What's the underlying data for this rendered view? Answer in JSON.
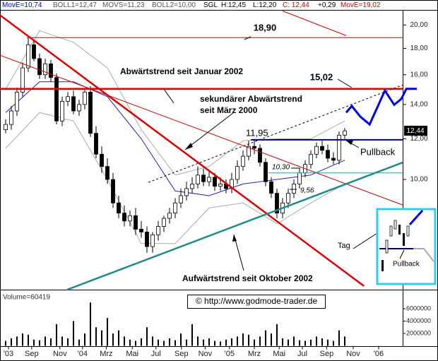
{
  "chart_data": {
    "type": "candlestick",
    "log_scale": true,
    "legend": [
      {
        "text": "MovE=10,74",
        "color": "#0000cc"
      },
      {
        "text": "BOLL1=12,47",
        "color": "#555555"
      },
      {
        "text": "MOVS=11,23",
        "color": "#555555"
      },
      {
        "text": "BOLL2=10,00",
        "color": "#555555"
      },
      {
        "text": "SGL",
        "color": "#000000"
      },
      {
        "text": "H:12,45",
        "color": "#000000"
      },
      {
        "text": "L:12,20",
        "color": "#000000"
      },
      {
        "text": "C: 12,44",
        "color": "#cc0000"
      },
      {
        "text": "+0,29",
        "color": "#000000"
      },
      {
        "text": "MovE=19,02",
        "color": "#cc0000"
      }
    ],
    "annotations": [
      "18,90",
      "Abwärtstrend seit Januar 2002",
      "15,02",
      "sekundärer Abwärtstrend",
      "seit März 2000",
      "11,95",
      "10,30",
      "9,56",
      "Pullback",
      "Tag",
      "Aufwärtstrend seit Oktober 2002",
      "Pullback",
      "© http://www.godmode-trader.de",
      "Volume=60419",
      "12,44"
    ],
    "x": [
      0,
      1,
      2,
      3,
      4,
      5,
      6,
      7,
      8,
      9,
      10,
      11,
      12,
      13,
      14,
      15,
      16,
      17,
      18,
      19,
      20,
      21,
      22,
      23,
      24,
      25,
      26,
      27,
      28,
      29,
      30,
      31,
      32,
      33,
      34,
      35,
      36,
      37,
      38,
      39,
      40,
      41,
      42,
      43,
      44,
      45,
      46,
      47,
      48,
      49,
      50,
      51,
      52,
      53,
      54,
      55,
      56,
      57,
      58,
      59,
      60
    ],
    "open": [
      12.5,
      12.8,
      13.6,
      14.8,
      16.5,
      18.3,
      17.2,
      16.0,
      16.8,
      15.8,
      13.0,
      14.2,
      14.5,
      13.6,
      14.0,
      14.8,
      12.3,
      11.2,
      10.6,
      10.0,
      9.0,
      8.6,
      8.3,
      8.5,
      8.0,
      7.9,
      7.4,
      7.8,
      8.1,
      8.4,
      8.6,
      9.0,
      9.3,
      9.6,
      9.8,
      10.2,
      9.9,
      10.1,
      9.7,
      9.8,
      9.6,
      10.0,
      10.6,
      11.1,
      11.6,
      11.5,
      10.8,
      9.9,
      9.4,
      8.6,
      9.0,
      9.4,
      9.8,
      10.3,
      10.7,
      11.2,
      11.6,
      11.4,
      11.0,
      10.9,
      12.2
    ],
    "high": [
      13.1,
      13.9,
      15.1,
      16.9,
      18.9,
      18.7,
      17.6,
      17.2,
      17.1,
      16.1,
      14.5,
      14.8,
      14.9,
      14.3,
      15.0,
      15.2,
      12.7,
      11.6,
      11.0,
      10.3,
      9.3,
      8.9,
      8.7,
      8.8,
      8.3,
      8.1,
      7.9,
      8.3,
      8.5,
      8.8,
      9.2,
      9.6,
      9.9,
      10.1,
      10.6,
      10.5,
      10.4,
      10.3,
      10.1,
      10.0,
      10.3,
      10.9,
      11.4,
      11.9,
      11.95,
      11.7,
      11.0,
      10.1,
      9.6,
      9.2,
      9.6,
      10.0,
      10.5,
      10.9,
      11.4,
      11.8,
      11.9,
      11.7,
      11.3,
      12.4,
      12.6
    ],
    "low": [
      12.3,
      12.5,
      13.3,
      14.5,
      16.2,
      17.0,
      15.7,
      15.7,
      15.5,
      12.8,
      12.7,
      13.9,
      13.4,
      13.3,
      13.7,
      12.1,
      11.0,
      10.3,
      9.8,
      8.8,
      8.4,
      8.1,
      8.1,
      7.8,
      7.7,
      7.2,
      7.2,
      7.6,
      7.9,
      8.2,
      8.4,
      8.8,
      9.1,
      9.4,
      9.6,
      9.7,
      9.7,
      9.5,
      9.5,
      9.4,
      9.4,
      9.8,
      10.4,
      10.9,
      11.2,
      10.6,
      9.7,
      9.2,
      8.4,
      8.4,
      8.8,
      9.2,
      9.6,
      10.1,
      10.5,
      11.0,
      11.2,
      10.8,
      10.7,
      10.7,
      12.0
    ],
    "close": [
      12.8,
      13.6,
      14.8,
      16.5,
      18.3,
      17.2,
      16.0,
      16.8,
      15.8,
      13.0,
      14.2,
      14.5,
      13.6,
      14.0,
      14.8,
      12.3,
      11.2,
      10.6,
      10.0,
      9.0,
      8.6,
      8.3,
      8.5,
      8.0,
      7.9,
      7.4,
      7.8,
      8.1,
      8.4,
      8.6,
      9.0,
      9.3,
      9.6,
      9.8,
      10.2,
      9.9,
      10.1,
      9.7,
      9.8,
      9.6,
      10.0,
      10.6,
      11.1,
      11.6,
      11.5,
      10.8,
      9.9,
      9.4,
      8.6,
      9.0,
      9.4,
      9.8,
      10.3,
      10.7,
      11.2,
      11.6,
      11.4,
      11.0,
      10.9,
      12.2,
      12.44
    ],
    "xlim": [
      -1,
      70.25
    ],
    "ylim": [
      6.1,
      21.4
    ],
    "yticks": [
      {
        "value": 10,
        "label": "10,00"
      },
      {
        "value": 12,
        "label": "12,00"
      },
      {
        "value": 14,
        "label": "14,00"
      },
      {
        "value": 16,
        "label": "16,00"
      },
      {
        "value": 18,
        "label": "18,00"
      },
      {
        "value": 20,
        "label": "20,00"
      }
    ],
    "xticks": [
      {
        "value": 0.5,
        "label": "'03"
      },
      {
        "value": 4.6,
        "label": "Sep"
      },
      {
        "value": 9.6,
        "label": "Nov"
      },
      {
        "value": 13.6,
        "label": "'04"
      },
      {
        "value": 17.8,
        "label": "Mrz"
      },
      {
        "value": 22.4,
        "label": "Mai"
      },
      {
        "value": 26.6,
        "label": "Jul"
      },
      {
        "value": 31.1,
        "label": "Sep"
      },
      {
        "value": 35.3,
        "label": "Nov"
      },
      {
        "value": 39.6,
        "label": "'05"
      },
      {
        "value": 44,
        "label": "Mrz"
      },
      {
        "value": 48.4,
        "label": "Mai"
      },
      {
        "value": 52.5,
        "label": "Jul"
      },
      {
        "value": 56.8,
        "label": "Sep"
      },
      {
        "value": 61.5,
        "label": "Nov"
      },
      {
        "value": 66,
        "label": "'06"
      }
    ],
    "volume": {
      "values": [
        800000,
        1200000,
        1500000,
        2000000,
        1800000,
        1000000,
        900000,
        1500000,
        1200000,
        3500000,
        1500000,
        1200000,
        4000000,
        1000000,
        2000000,
        7000000,
        3000000,
        2500000,
        4500000,
        2000000,
        2500000,
        1500000,
        1000000,
        800000,
        1200000,
        3000000,
        1500000,
        1000000,
        800000,
        1200000,
        900000,
        2000000,
        1000000,
        3500000,
        1500000,
        1000000,
        1200000,
        800000,
        700000,
        1000000,
        1200000,
        1500000,
        2000000,
        1800000,
        1000000,
        1500000,
        2500000,
        2000000,
        3500000,
        1200000,
        1000000,
        1500000,
        900000,
        800000,
        1000000,
        1500000,
        1200000,
        1000000,
        800000,
        2500000,
        1500000
      ],
      "ylim": [
        0,
        8000000
      ],
      "yticks": [
        2000000,
        4000000,
        6000000
      ],
      "color": "#000000"
    },
    "lines": [
      {
        "x": [
          0,
          6,
          12,
          18,
          24,
          30,
          36,
          42,
          48,
          54,
          60
        ],
        "y": [
          15,
          19.5,
          18.5,
          16.5,
          12.5,
          10.2,
          10.6,
          11.9,
          12.0,
          12.0,
          13.0
        ],
        "color": "#aaaaaa",
        "width": 1,
        "dash": false
      },
      {
        "x": [
          0,
          6,
          12,
          18,
          24,
          30,
          36,
          42,
          48,
          54,
          60
        ],
        "y": [
          11.5,
          13.5,
          13.0,
          10.0,
          7.5,
          7.5,
          8.8,
          9.0,
          8.2,
          9.0,
          9.8
        ],
        "color": "#aaaaaa",
        "width": 1,
        "dash": false
      },
      {
        "x": [
          0,
          6,
          12,
          18,
          24,
          30,
          36,
          42,
          48,
          54,
          60
        ],
        "y": [
          13.5,
          15.5,
          15.5,
          14.5,
          12.0,
          9.5,
          9.3,
          9.8,
          10.0,
          10.2,
          10.9
        ],
        "color": "#2222aa",
        "width": 1,
        "dash": false
      },
      {
        "x": [
          -1,
          63.4
        ],
        "y": [
          20.9,
          6.2
        ],
        "color": "#e00000",
        "width": 2.5,
        "dash": false
      },
      {
        "x": [
          -1,
          70.25
        ],
        "y": [
          17.46,
          8.92
        ],
        "color": "#cc0000",
        "width": 1,
        "dash": false
      },
      {
        "x": [
          3.75,
          70.25
        ],
        "y": [
          18.9,
          18.9
        ],
        "color": "#cc0000",
        "width": 1,
        "dash": false
      },
      {
        "x": [
          -1,
          70.25
        ],
        "y": [
          15.02,
          15.02
        ],
        "color": "#e00000",
        "width": 2.5,
        "dash": false
      },
      {
        "x": [
          10.9,
          70.25
        ],
        "y": [
          6.1,
          10.79
        ],
        "color": "#1a8a8a",
        "width": 2.5,
        "dash": false
      },
      {
        "x": [
          25.25,
          70.25
        ],
        "y": [
          9.87,
          15.28
        ],
        "color": "#000000",
        "width": 1,
        "dash": true
      },
      {
        "x": [
          43.4,
          70.25
        ],
        "y": [
          11.95,
          11.95
        ],
        "color": "#000080",
        "width": 2,
        "dash": false
      },
      {
        "x": [
          46.5,
          70.25
        ],
        "y": [
          10.3,
          10.3
        ],
        "color": "#2a9d9d",
        "width": 1,
        "dash": false
      },
      {
        "x": [
          49,
          60.25
        ],
        "y": [
          21.3,
          19.07
        ],
        "color": "#cc0000",
        "width": 1,
        "dash": false
      },
      {
        "x": [
          60.25,
          61.25,
          62.75,
          64.4,
          67.1,
          68.75,
          70,
          70.9,
          72.75
        ],
        "y": [
          13.5,
          13.9,
          13.26,
          12.8,
          14.9,
          13.98,
          14.35,
          15.02,
          15.02
        ],
        "color": "#0000ee",
        "width": 3,
        "dash": false
      }
    ]
  }
}
